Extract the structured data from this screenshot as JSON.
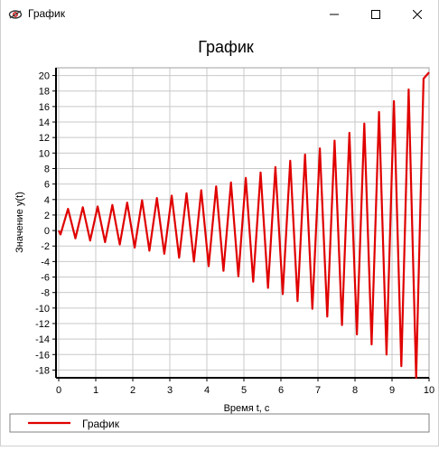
{
  "window": {
    "title": "График",
    "icons": [
      "chart-app-icon",
      "minimize-icon",
      "maximize-icon",
      "close-icon"
    ]
  },
  "colors": {
    "series": "#e00000",
    "grid": "#c8c8c8",
    "axis": "#000000"
  },
  "legend": {
    "label": "График"
  },
  "chart_data": {
    "type": "line",
    "title": "График",
    "xlabel": "Время t, с",
    "ylabel": "Значение y(t)",
    "xlim": [
      0,
      10
    ],
    "ylim": [
      -19,
      21
    ],
    "x_ticks": [
      0,
      1,
      2,
      3,
      4,
      5,
      6,
      7,
      8,
      9,
      10
    ],
    "y_ticks": [
      -18,
      -16,
      -14,
      -12,
      -10,
      -8,
      -6,
      -4,
      -2,
      0,
      2,
      4,
      6,
      8,
      10,
      12,
      14,
      16,
      18,
      20
    ],
    "grid": true,
    "legend_position": "bottom",
    "series": [
      {
        "name": "График",
        "color": "#e00000",
        "x": [
          0,
          0.05,
          0.25,
          0.45,
          0.65,
          0.85,
          1.05,
          1.25,
          1.45,
          1.65,
          1.85,
          2.05,
          2.25,
          2.45,
          2.65,
          2.85,
          3.05,
          3.25,
          3.45,
          3.65,
          3.85,
          4.05,
          4.25,
          4.45,
          4.65,
          4.85,
          5.05,
          5.25,
          5.45,
          5.65,
          5.85,
          6.05,
          6.25,
          6.45,
          6.65,
          6.85,
          7.05,
          7.25,
          7.45,
          7.65,
          7.85,
          8.05,
          8.25,
          8.45,
          8.65,
          8.85,
          9.05,
          9.25,
          9.45,
          9.65,
          9.85,
          10.0
        ],
        "y": [
          0,
          -0.5,
          2.8,
          -1,
          3,
          -1.3,
          3.1,
          -1.5,
          3.3,
          -1.8,
          3.6,
          -2.2,
          3.9,
          -2.6,
          4.2,
          -3,
          4.5,
          -3.5,
          4.8,
          -4,
          5.2,
          -4.6,
          5.7,
          -5.2,
          6.2,
          -5.9,
          6.8,
          -6.6,
          7.5,
          -7.4,
          8.2,
          -8.2,
          9,
          -9.1,
          9.8,
          -10.1,
          10.6,
          -11.1,
          11.6,
          -12.2,
          12.6,
          -13.4,
          13.8,
          -14.7,
          15.3,
          -16,
          16.7,
          -17.5,
          18.2,
          -19,
          19.6,
          20.4
        ]
      }
    ]
  }
}
